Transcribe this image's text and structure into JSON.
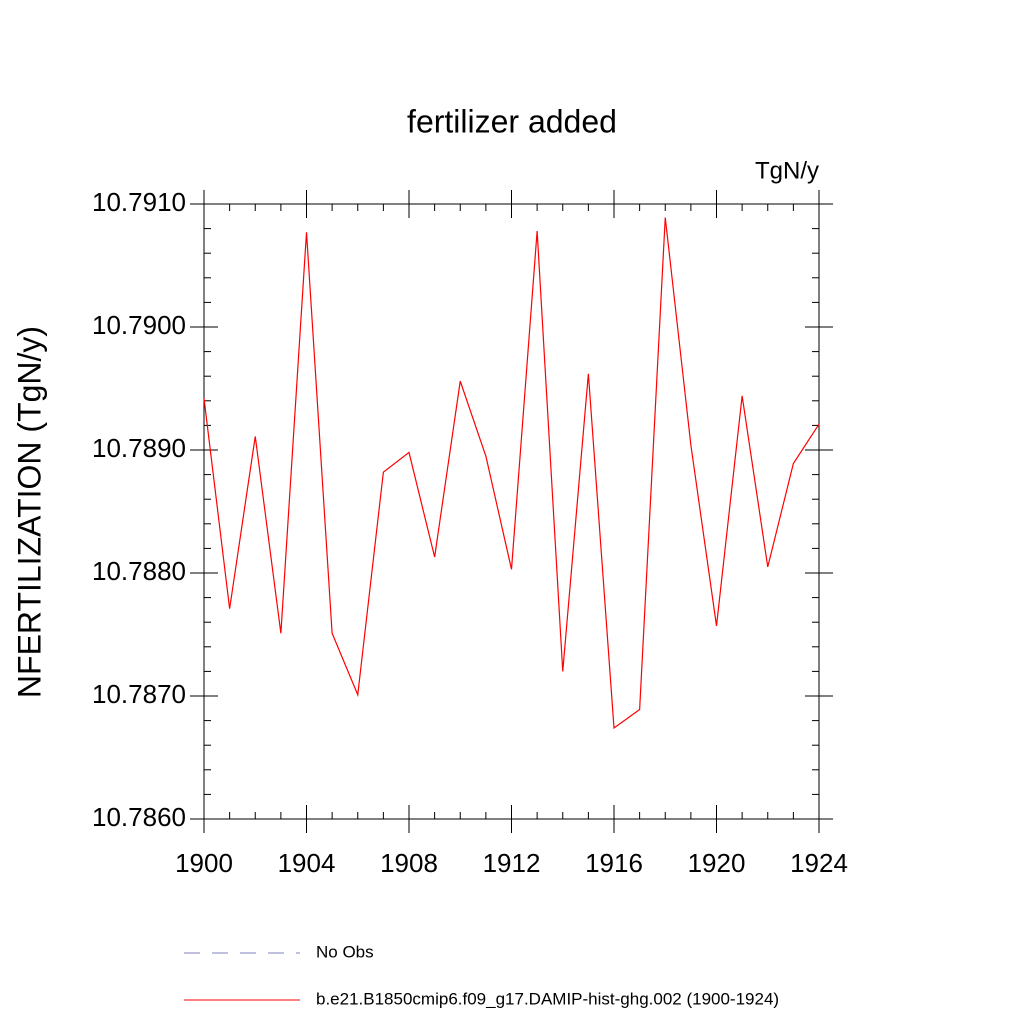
{
  "chart_data": {
    "type": "line",
    "title": "fertilizer added",
    "units": "TgN/y",
    "ylabel": "NFERTILIZATION  (TgN/y)",
    "x": [
      1900,
      1901,
      1902,
      1903,
      1904,
      1905,
      1906,
      1907,
      1908,
      1909,
      1910,
      1911,
      1912,
      1913,
      1914,
      1915,
      1916,
      1917,
      1918,
      1919,
      1920,
      1921,
      1922,
      1923,
      1924
    ],
    "series": [
      {
        "name": "b.e21.B1850cmip6.f09_g17.DAMIP-hist-ghg.002 (1900-1924)",
        "color": "#ff0000",
        "values": [
          10.78942,
          10.78771,
          10.78911,
          10.78751,
          10.79077,
          10.78751,
          10.78701,
          10.78882,
          10.78898,
          10.78813,
          10.78956,
          10.78895,
          10.78803,
          10.79078,
          10.7872,
          10.78962,
          10.78674,
          10.78689,
          10.79089,
          10.78904,
          10.78757,
          10.78944,
          10.78805,
          10.78889,
          10.78921
        ]
      }
    ],
    "extra_legend": {
      "name": "No Obs",
      "color": "#8080c0",
      "dash": "dashed"
    },
    "xlim": [
      1900,
      1924
    ],
    "xticks": [
      1900,
      1904,
      1908,
      1912,
      1916,
      1920,
      1924
    ],
    "ylim": [
      10.786,
      10.791
    ],
    "yticks": [
      {
        "value": 10.786,
        "label": "10.7860"
      },
      {
        "value": 10.787,
        "label": "10.7870"
      },
      {
        "value": 10.788,
        "label": "10.7880"
      },
      {
        "value": 10.789,
        "label": "10.7890"
      },
      {
        "value": 10.79,
        "label": "10.7900"
      },
      {
        "value": 10.791,
        "label": "10.7910"
      }
    ]
  }
}
